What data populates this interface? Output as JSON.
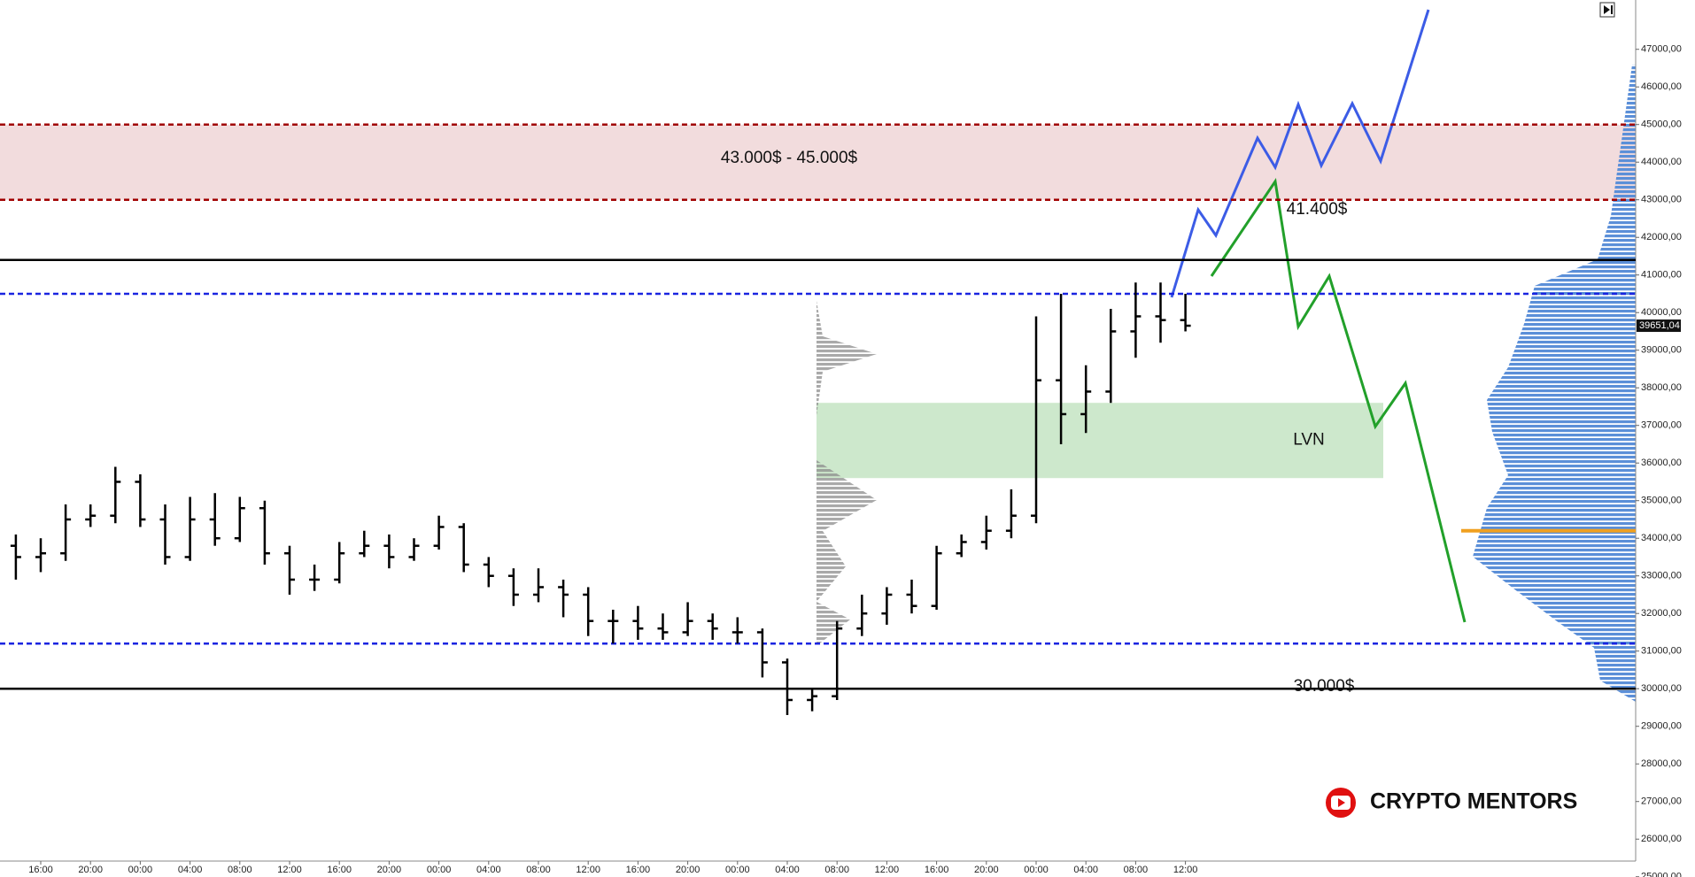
{
  "chart_data": {
    "type": "ohlc",
    "categories": [
      null,
      "16:00",
      null,
      "20:00",
      null,
      "00:00",
      null,
      "04:00",
      null,
      "08:00",
      null,
      "12:00",
      null,
      "16:00",
      null,
      "20:00",
      null,
      "00:00",
      null,
      "04:00",
      null,
      "08:00",
      null,
      "12:00",
      null,
      "16:00",
      null,
      "20:00",
      null,
      "00:00",
      null,
      "04:00",
      null,
      "08:00",
      null,
      "12:00",
      null,
      "16:00",
      null,
      "20:00",
      null,
      "00:00",
      null,
      "04:00",
      null,
      "08:00",
      null,
      "12:00"
    ],
    "ohlc": [
      [
        33800,
        34100,
        32900,
        33500
      ],
      [
        33500,
        34000,
        33100,
        33600
      ],
      [
        33600,
        34900,
        33400,
        34500
      ],
      [
        34500,
        34900,
        34300,
        34600
      ],
      [
        34600,
        35900,
        34400,
        35500
      ],
      [
        35500,
        35700,
        34300,
        34500
      ],
      [
        34500,
        34900,
        33300,
        33500
      ],
      [
        33500,
        35100,
        33400,
        34500
      ],
      [
        34500,
        35200,
        33800,
        34000
      ],
      [
        34000,
        35100,
        33900,
        34800
      ],
      [
        34800,
        35000,
        33300,
        33600
      ],
      [
        33600,
        33800,
        32500,
        32900
      ],
      [
        32900,
        33300,
        32600,
        32900
      ],
      [
        32900,
        33900,
        32800,
        33600
      ],
      [
        33600,
        34200,
        33500,
        33800
      ],
      [
        33800,
        34100,
        33200,
        33500
      ],
      [
        33500,
        34000,
        33400,
        33800
      ],
      [
        33800,
        34600,
        33700,
        34300
      ],
      [
        34300,
        34400,
        33100,
        33300
      ],
      [
        33300,
        33500,
        32700,
        33000
      ],
      [
        33000,
        33200,
        32200,
        32500
      ],
      [
        32500,
        33200,
        32300,
        32700
      ],
      [
        32700,
        32900,
        31900,
        32500
      ],
      [
        32500,
        32700,
        31400,
        31800
      ],
      [
        31800,
        32100,
        31200,
        31800
      ],
      [
        31800,
        32200,
        31300,
        31600
      ],
      [
        31600,
        32000,
        31300,
        31500
      ],
      [
        31500,
        32300,
        31400,
        31800
      ],
      [
        31800,
        32000,
        31300,
        31600
      ],
      [
        31500,
        31900,
        31200,
        31500
      ],
      [
        31500,
        31600,
        30300,
        30700
      ],
      [
        30700,
        30800,
        29300,
        29700
      ],
      [
        29700,
        30000,
        29400,
        29800
      ],
      [
        29800,
        31800,
        29700,
        31600
      ],
      [
        31600,
        32500,
        31400,
        32000
      ],
      [
        32000,
        32700,
        31700,
        32500
      ],
      [
        32500,
        32900,
        32000,
        32200
      ],
      [
        32200,
        33800,
        32100,
        33600
      ],
      [
        33600,
        34100,
        33500,
        33900
      ],
      [
        33900,
        34600,
        33700,
        34200
      ],
      [
        34200,
        35300,
        34000,
        34600
      ],
      [
        34600,
        39900,
        34400,
        38200
      ],
      [
        38200,
        40500,
        36500,
        37300
      ],
      [
        37300,
        38600,
        36800,
        37900
      ],
      [
        37900,
        40100,
        37600,
        39500
      ],
      [
        39500,
        40800,
        38800,
        39900
      ],
      [
        39900,
        40800,
        39200,
        39800
      ],
      [
        39800,
        40500,
        39500,
        39651.04
      ]
    ],
    "color": "#000000",
    "last_price": {
      "value": 39651.04,
      "label": "39651,04"
    },
    "ylim": [
      24311,
      48311
    ],
    "yticks": [
      {
        "value": 25000,
        "label": "25000,00"
      },
      {
        "value": 26000,
        "label": "26000,00"
      },
      {
        "value": 27000,
        "label": "27000,00"
      },
      {
        "value": 28000,
        "label": "28000,00"
      },
      {
        "value": 29000,
        "label": "29000,00"
      },
      {
        "value": 30000,
        "label": "30000,00"
      },
      {
        "value": 31000,
        "label": "31000,00"
      },
      {
        "value": 32000,
        "label": "32000,00"
      },
      {
        "value": 33000,
        "label": "33000,00"
      },
      {
        "value": 34000,
        "label": "34000,00"
      },
      {
        "value": 35000,
        "label": "35000,00"
      },
      {
        "value": 36000,
        "label": "36000,00"
      },
      {
        "value": 37000,
        "label": "37000,00"
      },
      {
        "value": 38000,
        "label": "38000,00"
      },
      {
        "value": 39000,
        "label": "39000,00"
      },
      {
        "value": 40000,
        "label": "40000,00"
      },
      {
        "value": 41000,
        "label": "41000,00"
      },
      {
        "value": 42000,
        "label": "42000,00"
      },
      {
        "value": 43000,
        "label": "43000,00"
      },
      {
        "value": 44000,
        "label": "44000,00"
      },
      {
        "value": 45000,
        "label": "45000,00"
      },
      {
        "value": 46000,
        "label": "46000,00"
      },
      {
        "value": 47000,
        "label": "47000,00"
      }
    ],
    "zones": [
      {
        "from": 43000,
        "to": 45000,
        "color": "#f2dcdd",
        "label": "43.000$ - 45.000$"
      },
      {
        "from": 35600,
        "to": 37600,
        "color": "#cde8cc",
        "label": "LVN"
      }
    ],
    "levels": [
      {
        "value": 45000,
        "color": "#a00000",
        "style": "dashed"
      },
      {
        "value": 43000,
        "color": "#a00000",
        "style": "dashed"
      },
      {
        "value": 41400,
        "color": "#000000",
        "style": "solid",
        "label": "41.400$"
      },
      {
        "value": 40500,
        "color": "#1a24e0",
        "style": "dashed"
      },
      {
        "value": 31200,
        "color": "#1a24e0",
        "style": "dashed"
      },
      {
        "value": 30000,
        "color": "#000000",
        "style": "solid",
        "label": "30.000$"
      }
    ],
    "poc": {
      "value": 34200,
      "color": "#f0a020"
    },
    "brand": "CRYPTO MENTORS"
  }
}
